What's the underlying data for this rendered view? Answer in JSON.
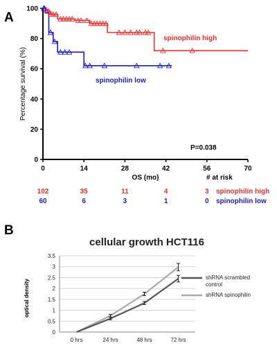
{
  "panels": {
    "a_label": "A",
    "b_label": "B"
  },
  "colors": {
    "high": "#ff2a2a",
    "low": "#1a1adb",
    "scrambled": "#555555",
    "spinophilin": "#aaaaaa"
  },
  "chart_data": [
    {
      "type": "line",
      "subtype": "kaplan-meier",
      "title": "",
      "xlabel": "OS (mo)",
      "ylabel": "Percentage survival (%)",
      "xlim": [
        0,
        70
      ],
      "ylim": [
        0,
        100
      ],
      "xticks": [
        0,
        14,
        28,
        42,
        56,
        70
      ],
      "yticks": [
        0,
        20,
        40,
        60,
        80,
        100
      ],
      "grid": false,
      "annotation": "P=0.038",
      "series": [
        {
          "name": "spinophilin high",
          "color": "#ff2a2a",
          "steps": [
            [
              0,
              100
            ],
            [
              0.8,
              99
            ],
            [
              1.5,
              98
            ],
            [
              2.5,
              96
            ],
            [
              5,
              93
            ],
            [
              11,
              92
            ],
            [
              16,
              90
            ],
            [
              22,
              84
            ],
            [
              38,
              72
            ],
            [
              70,
              72
            ]
          ],
          "censored": [
            0.5,
            1.2,
            2,
            2.8,
            3.5,
            4.5,
            6,
            7,
            8,
            9,
            10,
            12,
            13,
            15,
            16.5,
            17.5,
            18.5,
            19.5,
            20.5,
            21.5,
            26,
            28,
            30,
            32,
            33,
            35,
            36,
            41,
            51
          ]
        },
        {
          "name": "spinophilin low",
          "color": "#1a1adb",
          "steps": [
            [
              0,
              100
            ],
            [
              0.8,
              97
            ],
            [
              2,
              84
            ],
            [
              3.5,
              78
            ],
            [
              5,
              71
            ],
            [
              14,
              62
            ],
            [
              44,
              62
            ]
          ],
          "censored": [
            0.3,
            0.5,
            2.6,
            4,
            6,
            7.5,
            9,
            14.5,
            16,
            21,
            32,
            40,
            43
          ]
        }
      ],
      "at_risk": {
        "label": "# at risk",
        "times": [
          0,
          14,
          28,
          42,
          56
        ],
        "rows": [
          {
            "name": "spinophilin high",
            "values": [
              "102",
              "35",
              "11",
              "4",
              "3"
            ]
          },
          {
            "name": "spinophilin low",
            "values": [
              "60",
              "6",
              "3",
              "1",
              "0"
            ]
          }
        ]
      }
    },
    {
      "type": "line",
      "title": "cellular growth HCT116",
      "xlabel": "",
      "ylabel": "optical density",
      "categories": [
        "0 hrs",
        "24 hrs",
        "48 hrs",
        "72 hrs"
      ],
      "ylim": [
        0,
        3.5
      ],
      "yticks": [
        "0",
        "0.5",
        "1",
        "1.5",
        "2",
        "2.5",
        "3",
        "3.5"
      ],
      "grid": true,
      "legend_position": "right",
      "series": [
        {
          "name": "shRNA scrambled control",
          "color": "#555555",
          "values": [
            0,
            0.62,
            1.33,
            2.45
          ],
          "errors": [
            0,
            0.06,
            0.07,
            0.15
          ]
        },
        {
          "name": "shRNA spinophilin",
          "color": "#aaaaaa",
          "values": [
            0,
            0.75,
            1.75,
            2.98
          ],
          "errors": [
            0,
            0.06,
            0.08,
            0.17
          ]
        }
      ]
    }
  ]
}
